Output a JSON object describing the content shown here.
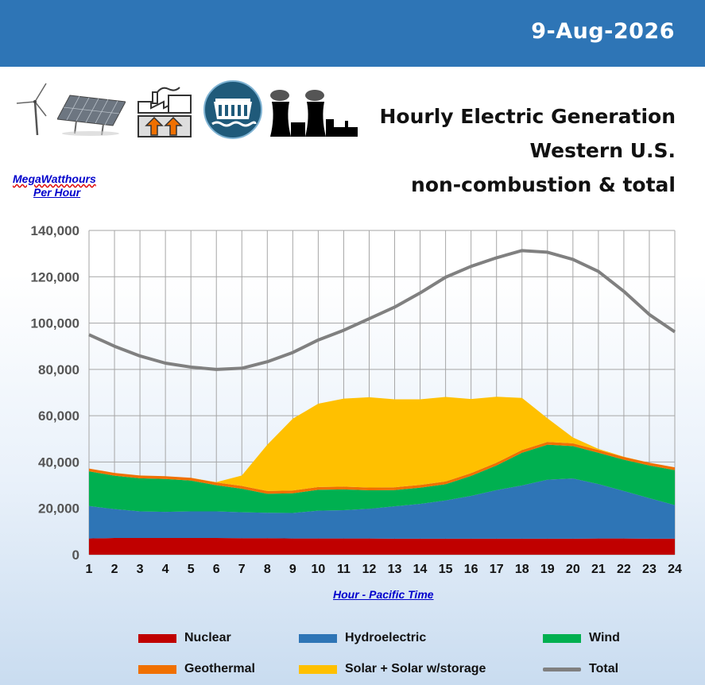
{
  "header": {
    "date": "9-Aug-2026"
  },
  "title_lines": [
    "Hourly Electric Generation",
    "Western U.S.",
    "non-combustion & total"
  ],
  "icons": [
    "wind-turbine-icon",
    "solar-panel-icon",
    "geothermal-plant-icon",
    "hydro-dam-icon",
    "nuclear-plant-icon"
  ],
  "chart_data": {
    "type": "area",
    "title": "Hourly Electric Generation Western U.S. non-combustion & total",
    "ylabel_lines": [
      "MegaWatthours",
      "Per Hour"
    ],
    "xlabel": "Hour - Pacific Time",
    "x": [
      1,
      2,
      3,
      4,
      5,
      6,
      7,
      8,
      9,
      10,
      11,
      12,
      13,
      14,
      15,
      16,
      17,
      18,
      19,
      20,
      21,
      22,
      23,
      24
    ],
    "ylim": [
      0,
      140000
    ],
    "yticks": [
      0,
      20000,
      40000,
      60000,
      80000,
      100000,
      120000,
      140000
    ],
    "ytick_labels": [
      "0",
      "20,000",
      "40,000",
      "60,000",
      "80,000",
      "100,000",
      "120,000",
      "140,000"
    ],
    "grid": true,
    "stacked": true,
    "series": [
      {
        "name": "Nuclear",
        "color": "#c00000",
        "values": [
          7000,
          7200,
          7200,
          7200,
          7200,
          7200,
          7100,
          7100,
          7000,
          7000,
          7000,
          7000,
          6900,
          6900,
          6900,
          6900,
          6900,
          6900,
          6900,
          6900,
          7000,
          7000,
          6900,
          6900
        ]
      },
      {
        "name": "Hydroelectric",
        "color": "#2e75b6",
        "values": [
          14000,
          12500,
          11500,
          11300,
          11500,
          11500,
          11200,
          11000,
          11000,
          12000,
          12200,
          12800,
          14000,
          15000,
          16500,
          18500,
          21000,
          23000,
          25500,
          26000,
          23500,
          20500,
          17500,
          14500
        ]
      },
      {
        "name": "Wind",
        "color": "#00b050",
        "values": [
          15000,
          14400,
          14300,
          14200,
          13300,
          11300,
          10200,
          8200,
          8500,
          9000,
          9000,
          8000,
          7000,
          7000,
          7000,
          8600,
          10600,
          14100,
          15100,
          14000,
          13500,
          13500,
          14100,
          15100
        ]
      },
      {
        "name": "Geothermal",
        "color": "#f07000",
        "values": [
          1200,
          1200,
          1200,
          1200,
          1200,
          1200,
          1200,
          1200,
          1200,
          1200,
          1200,
          1200,
          1200,
          1200,
          1200,
          1200,
          1200,
          1200,
          1200,
          1200,
          1200,
          1200,
          1200,
          1200
        ]
      },
      {
        "name": "Solar + Solar w/storage",
        "color": "#ffc000",
        "values": [
          0,
          0,
          0,
          0,
          0,
          100,
          4500,
          20000,
          31000,
          36000,
          38000,
          39000,
          38000,
          37000,
          36500,
          32000,
          28500,
          22500,
          10200,
          2500,
          500,
          100,
          0,
          0
        ]
      }
    ],
    "total": {
      "name": "Total",
      "color": "#808080",
      "values": [
        95000,
        90000,
        85800,
        82700,
        81000,
        80000,
        80500,
        83300,
        87300,
        92700,
        96900,
        101900,
        106900,
        113000,
        119800,
        124500,
        128200,
        131300,
        130600,
        127500,
        122300,
        113700,
        103700,
        96200
      ]
    },
    "legend": [
      "Nuclear",
      "Hydroelectric",
      "Wind",
      "Geothermal",
      "Solar + Solar w/storage",
      "Total"
    ],
    "legend_position": "bottom"
  }
}
